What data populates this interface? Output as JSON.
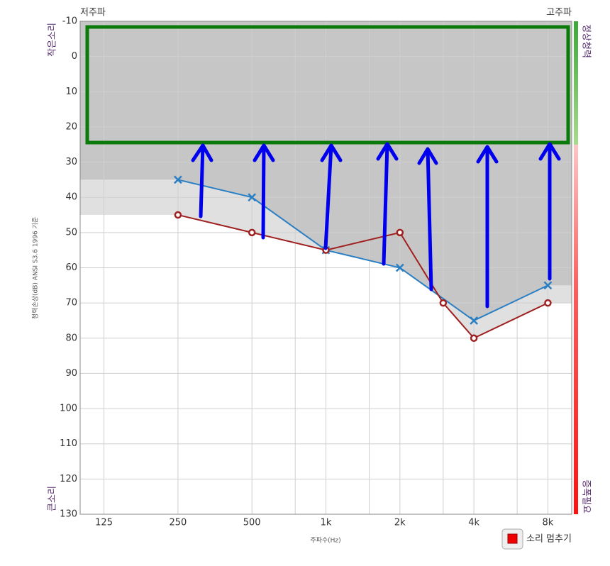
{
  "chart_data": {
    "type": "line",
    "x_label": "주파수(Hz)",
    "y_label": "청력손상(dB) ANSI S3.6 1996 기준",
    "corner_left": "저주파",
    "corner_right": "고주파",
    "y_top_label": "작은소리",
    "y_bottom_label": "큰소리",
    "bar_top_label": "정상청력",
    "bar_bottom_label": "증폭필요",
    "x_log": true,
    "y_inverted": true,
    "grid": true,
    "xlim": [
      100,
      10000
    ],
    "xticks": [
      125,
      250,
      500,
      {
        "value": 1000,
        "label": "1k"
      },
      {
        "value": 2000,
        "label": "2k"
      },
      {
        "value": 4000,
        "label": "4k"
      },
      {
        "value": 8000,
        "label": "8k"
      }
    ],
    "x_minor_ticks": [
      750,
      1500,
      3000,
      6000
    ],
    "ylim": [
      -10,
      130
    ],
    "yticks": [
      -10,
      0,
      10,
      20,
      30,
      40,
      50,
      60,
      70,
      80,
      90,
      100,
      110,
      120,
      130
    ],
    "series": [
      {
        "color": "#2a7fc4",
        "marker": "x",
        "x": [
          250,
          500,
          1000,
          2000,
          4000,
          8000
        ],
        "values": [
          35,
          40,
          55,
          60,
          75,
          65
        ]
      },
      {
        "color": "#a02020",
        "marker": "o",
        "x": [
          250,
          500,
          1000,
          2000,
          3000,
          4000,
          8000
        ],
        "values": [
          45,
          50,
          55,
          50,
          70,
          80,
          70
        ]
      }
    ]
  },
  "controls": {
    "stop_button": "소리 멈추기"
  }
}
